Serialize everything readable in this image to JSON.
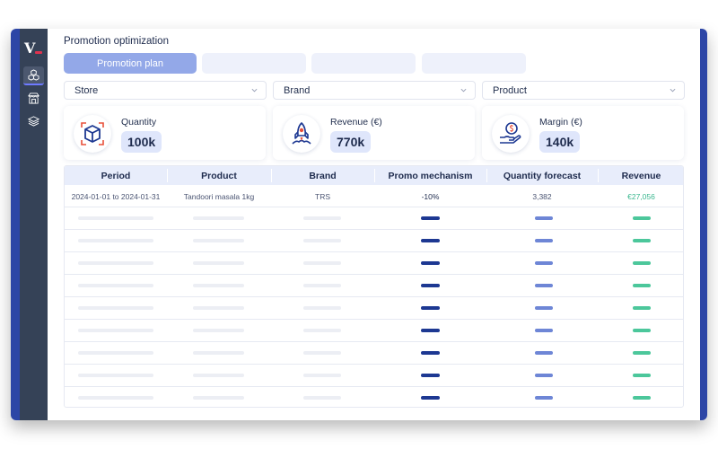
{
  "app": {
    "logo_text": "V",
    "page_title": "Promotion optimization"
  },
  "tabs": [
    {
      "label": "Promotion plan",
      "active": true
    },
    {
      "label": "",
      "active": false
    },
    {
      "label": "",
      "active": false
    },
    {
      "label": "",
      "active": false
    }
  ],
  "filters": [
    {
      "label": "Store"
    },
    {
      "label": "Brand"
    },
    {
      "label": "Product"
    }
  ],
  "kpis": [
    {
      "label": "Quantity",
      "value": "100k",
      "icon": "box-icon"
    },
    {
      "label": "Revenue (€)",
      "value": "770k",
      "icon": "rocket-icon"
    },
    {
      "label": "Margin (€)",
      "value": "140k",
      "icon": "hand-coin-icon"
    }
  ],
  "table": {
    "headers": [
      "Period",
      "Product",
      "Brand",
      "Promo mechanism",
      "Quantity forecast",
      "Revenue"
    ],
    "first_row": {
      "period": "2024-01-01 to 2024-01-31",
      "product": "Tandoori masala 1kg",
      "brand": "TRS",
      "promo_mechanism": "-10%",
      "quantity_forecast": "3,382",
      "revenue": "€27,056"
    }
  },
  "colors": {
    "sidebar": "#354257",
    "accent": "#2d46a6",
    "active_tab": "#93a8e8",
    "revenue_green": "#3bb78f",
    "logo_red": "#e0334f"
  }
}
